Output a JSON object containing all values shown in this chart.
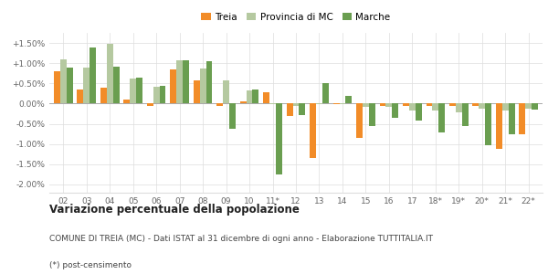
{
  "years": [
    "02",
    "03",
    "04",
    "05",
    "06",
    "07",
    "08",
    "09",
    "10",
    "11*",
    "12",
    "13",
    "14",
    "15",
    "16",
    "17",
    "18*",
    "19*",
    "20*",
    "21*",
    "22*"
  ],
  "treia": [
    0.8,
    0.35,
    0.4,
    0.1,
    -0.05,
    0.85,
    0.58,
    -0.05,
    0.05,
    0.28,
    -0.3,
    -1.35,
    -0.02,
    -0.85,
    -0.05,
    -0.05,
    -0.05,
    -0.05,
    -0.05,
    -1.12,
    -0.75
  ],
  "provincia": [
    1.1,
    0.9,
    1.48,
    0.62,
    0.42,
    1.08,
    0.87,
    0.57,
    0.33,
    -0.02,
    -0.05,
    -0.02,
    -0.02,
    -0.08,
    -0.08,
    -0.18,
    -0.18,
    -0.22,
    -0.12,
    -0.18,
    -0.12
  ],
  "marche": [
    0.9,
    1.38,
    0.92,
    0.65,
    0.45,
    1.08,
    1.04,
    -0.62,
    0.35,
    -1.75,
    -0.28,
    0.5,
    0.18,
    -0.55,
    -0.35,
    -0.42,
    -0.72,
    -0.55,
    -1.02,
    -0.75,
    -0.15
  ],
  "treia_color": "#f28c28",
  "provincia_color": "#b5c9a0",
  "marche_color": "#6a9e50",
  "bg_color": "#ffffff",
  "grid_color": "#dddddd",
  "title_bold": "Variazione percentuale della popolazione",
  "subtitle": "COMUNE DI TREIA (MC) - Dati ISTAT al 31 dicembre di ogni anno - Elaborazione TUTTITALIA.IT",
  "footnote": "(*) post-censimento",
  "ylim": [
    -2.2,
    1.75
  ],
  "yticks": [
    -2.0,
    -1.5,
    -1.0,
    -0.5,
    0.0,
    0.5,
    1.0,
    1.5
  ],
  "ytick_labels": [
    "-2.00%",
    "-1.50%",
    "-1.00%",
    "-0.50%",
    "0.00%",
    "+0.50%",
    "+1.00%",
    "+1.50%"
  ]
}
